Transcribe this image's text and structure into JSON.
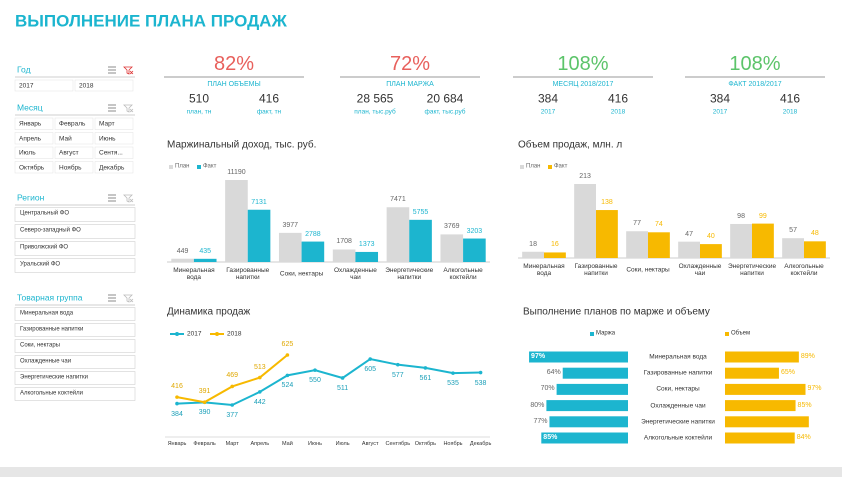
{
  "title": "ВЫПОЛНЕНИЕ ПЛАНА ПРОДАЖ",
  "slicers": [
    {
      "title": "Год",
      "items": [
        "2017",
        "2018"
      ]
    },
    {
      "title": "Месяц",
      "items": [
        "Январь",
        "Февраль",
        "Март",
        "Апрель",
        "Май",
        "Июнь",
        "Июль",
        "Август",
        "Сентя...",
        "Октябрь",
        "Ноябрь",
        "Декабрь"
      ]
    },
    {
      "title": "Регион",
      "items": [
        "Центральный ФО",
        "Северо-западный ФО",
        "Приволжский ФО",
        "Уральский ФО"
      ]
    },
    {
      "title": "Товарная группа",
      "items": [
        "Минеральная вода",
        "Газированные напитки",
        "Соки, нектары",
        "Охлажденные чаи",
        "Энергетические напитки",
        "Алкогольные коктейли"
      ]
    }
  ],
  "kpis": [
    {
      "value": "82%",
      "label": "ПЛАН ОБЪЕМЫ",
      "color": "#e8605c",
      "values": [
        {
          "value": "510",
          "label": "план, тн"
        },
        {
          "value": "416",
          "label": "факт, тн"
        }
      ]
    },
    {
      "value": "72%",
      "label": "ПЛАН МАРЖА",
      "color": "#e8605c",
      "values": [
        {
          "value": "28 565",
          "label": "план, тыс.руб"
        },
        {
          "value": "20 684",
          "label": "факт, тыс.руб"
        }
      ]
    },
    {
      "value": "108%",
      "label": "МЕСЯЦ 2018/2017",
      "color": "#5cc46a",
      "values": [
        {
          "value": "384",
          "label": "2017"
        },
        {
          "value": "416",
          "label": "2018"
        }
      ]
    },
    {
      "value": "108%",
      "label": "ФАКТ 2018/2017",
      "color": "#5cc46a",
      "values": [
        {
          "value": "384",
          "label": "2017"
        },
        {
          "value": "416",
          "label": "2018"
        }
      ]
    }
  ],
  "chart_data": [
    {
      "type": "bar",
      "title": "Маржинальный доход, тыс. руб.",
      "categories": [
        "Минеральная вода",
        "Газированные напитки",
        "Соки, нектары",
        "Охлажденные чаи",
        "Энергетические напитки",
        "Алкогольные коктейли"
      ],
      "series": [
        {
          "name": "План",
          "color": "#d9d9d9",
          "values": [
            449,
            11190,
            3977,
            1708,
            7471,
            3769
          ]
        },
        {
          "name": "Факт",
          "color": "#1cb5cf",
          "values": [
            435,
            7131,
            2788,
            1373,
            5755,
            3203
          ]
        }
      ]
    },
    {
      "type": "bar",
      "title": "Объем продаж, млн. л",
      "categories": [
        "Минеральная вода",
        "Газированные напитки",
        "Соки, нектары",
        "Охлажденные чаи",
        "Энергетические напитки",
        "Алкогольные коктейли"
      ],
      "series": [
        {
          "name": "План",
          "color": "#d9d9d9",
          "values": [
            18,
            213,
            77,
            47,
            98,
            57
          ]
        },
        {
          "name": "Факт",
          "color": "#f7b900",
          "values": [
            16,
            138,
            74,
            40,
            99,
            48
          ]
        }
      ]
    },
    {
      "type": "line",
      "title": "Динамика продаж",
      "categories": [
        "Январь",
        "Февраль",
        "Март",
        "Апрель",
        "Май",
        "Июнь",
        "Июль",
        "Август",
        "Сентябрь",
        "Октябрь",
        "Ноябрь",
        "Декабрь"
      ],
      "series": [
        {
          "name": "2017",
          "color": "#1cb5cf",
          "values": [
            384,
            390,
            377,
            442,
            524,
            550,
            511,
            605,
            577,
            561,
            535,
            538
          ]
        },
        {
          "name": "2018",
          "color": "#f7b900",
          "values": [
            416,
            391,
            469,
            513,
            625,
            null,
            null,
            null,
            null,
            null,
            null,
            null
          ]
        }
      ]
    },
    {
      "type": "hbar",
      "title": "Выполнение планов по марже и объему",
      "categories": [
        "Минеральная вода",
        "Газированные напитки",
        "Соки, нектары",
        "Охлажденные чаи",
        "Энергетические напитки",
        "Алкогольные коктейли"
      ],
      "series": [
        {
          "name": "Маржа",
          "color": "#1cb5cf",
          "values": [
            97,
            64,
            70,
            80,
            77,
            85
          ],
          "value_labels": [
            "97%",
            "64%",
            "70%",
            "80%",
            "77%",
            "85%"
          ]
        },
        {
          "name": "Объем",
          "color": "#f7b900",
          "values": [
            89,
            65,
            97,
            85,
            101,
            84
          ],
          "value_labels": [
            "89%",
            "65%",
            "97%",
            "85%",
            null,
            "84%"
          ]
        }
      ]
    }
  ]
}
